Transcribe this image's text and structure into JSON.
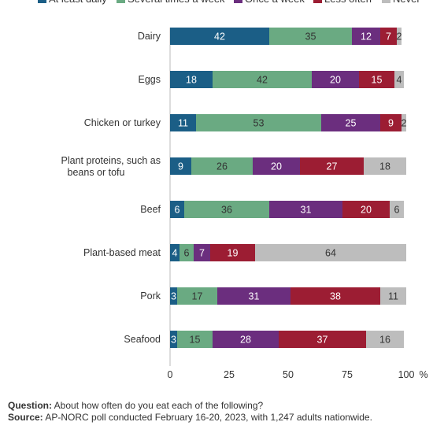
{
  "chart_data": {
    "type": "bar",
    "orientation": "horizontal",
    "stacked": true,
    "categories": [
      "Dairy",
      "Eggs",
      "Chicken or turkey",
      "Plant proteins, such as beans or tofu",
      "Beef",
      "Plant-based meat",
      "Pork",
      "Seafood"
    ],
    "series": [
      {
        "name": "At least daily",
        "color": "#1b5e86",
        "values": [
          42,
          18,
          11,
          9,
          6,
          4,
          3,
          3
        ]
      },
      {
        "name": "Several times a week",
        "color": "#6aaa82",
        "values": [
          35,
          42,
          53,
          26,
          36,
          6,
          17,
          15
        ]
      },
      {
        "name": "Once a week",
        "color": "#6b2e7e",
        "values": [
          12,
          20,
          25,
          20,
          31,
          7,
          31,
          28
        ]
      },
      {
        "name": "Less often",
        "color": "#9c1d33",
        "values": [
          7,
          15,
          9,
          27,
          20,
          19,
          38,
          37
        ]
      },
      {
        "name": "Never",
        "color": "#bdbdbd",
        "values": [
          2,
          4,
          2,
          18,
          6,
          64,
          11,
          16
        ]
      }
    ],
    "xlim": [
      0,
      100
    ],
    "xticks": [
      0,
      25,
      50,
      75,
      100
    ],
    "x_unit": "%",
    "legend_position": "top"
  },
  "footnote": {
    "question_label": "Question:",
    "question_text": "About how often do you eat each of the following?",
    "source_label": "Source:",
    "source_text": "AP-NORC poll conducted February 16-20, 2023, with 1,247 adults nationwide."
  }
}
